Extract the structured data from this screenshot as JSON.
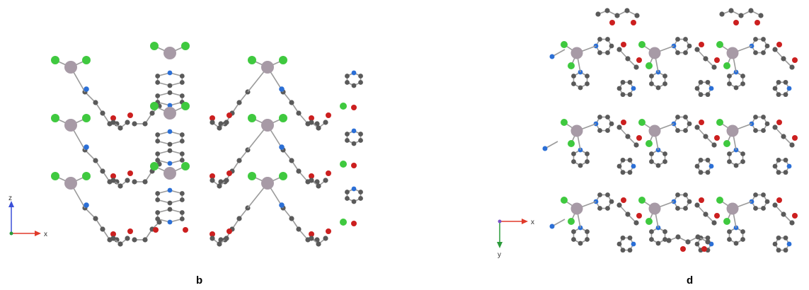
{
  "panels": [
    {
      "label": "b",
      "axes": {
        "vertical": "z",
        "horizontal": "x",
        "vertical_color": "#3a4fd8",
        "horizontal_color": "#e03a2a"
      }
    },
    {
      "label": "d",
      "axes": {
        "vertical": "y",
        "horizontal": "x",
        "vertical_color": "#2a9a3a",
        "horizontal_color": "#e03a2a"
      }
    }
  ],
  "atom_colors": {
    "metal": "#a79aa6",
    "chlorine": "#3fc93f",
    "nitrogen": "#2b6fd6",
    "oxygen": "#cc1f1f",
    "carbon": "#5a5a5a",
    "bond": "#9a9a9a"
  }
}
